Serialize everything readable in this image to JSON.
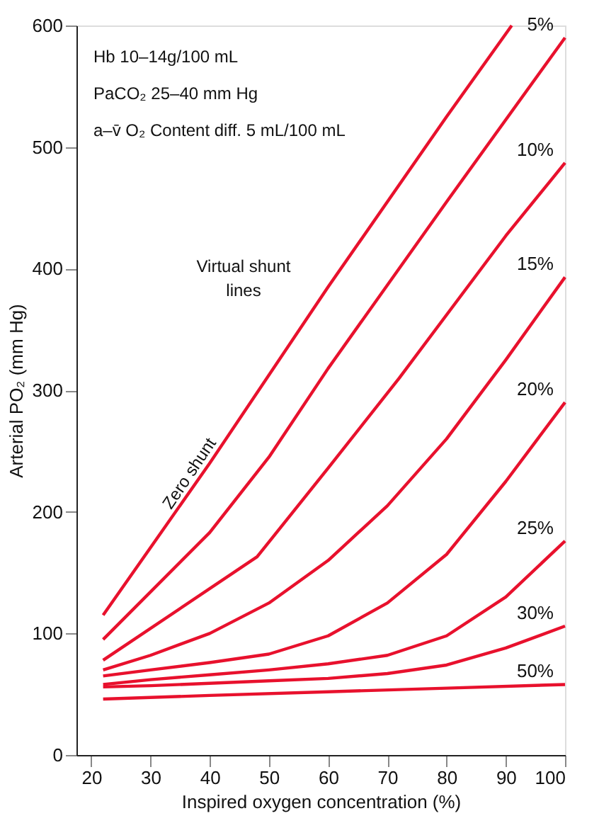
{
  "chart_data": {
    "type": "line",
    "xlabel": "Inspired oxygen concentration (%)",
    "ylabel": "Arterial PO₂ (mm Hg)",
    "xlim": [
      17.5,
      100
    ],
    "xticks": [
      20,
      30,
      40,
      50,
      60,
      70,
      80,
      90,
      100
    ],
    "ylim": [
      0,
      600
    ],
    "yticks": [
      0,
      100,
      200,
      300,
      400,
      500,
      600
    ],
    "grid": false,
    "marker": "none",
    "line_style": "solid",
    "annotations": [
      "Hb 10–14g/100 mL",
      "PaCO₂ 25–40 mm Hg",
      "a–v̄ O₂ Content diff. 5 mL/100 mL",
      "Virtual shunt\nlines"
    ],
    "series": [
      {
        "name": "Zero shunt",
        "color": "#e8112d",
        "x": [
          22,
          40,
          60,
          80,
          91
        ],
        "values": [
          115,
          240,
          385,
          525,
          600
        ]
      },
      {
        "name": "5%",
        "color": "#e8112d",
        "x": [
          22,
          40,
          50,
          60,
          80,
          100
        ],
        "values": [
          95,
          183,
          245,
          318,
          455,
          590
        ]
      },
      {
        "name": "10%",
        "color": "#e8112d",
        "x": [
          22,
          48,
          60,
          72,
          90,
          100
        ],
        "values": [
          78,
          163,
          236,
          310,
          427,
          487
        ]
      },
      {
        "name": "15%",
        "color": "#e8112d",
        "x": [
          22,
          30,
          40,
          50,
          60,
          70,
          80,
          90,
          100
        ],
        "values": [
          70,
          82,
          100,
          125,
          160,
          205,
          260,
          325,
          393
        ]
      },
      {
        "name": "20%",
        "color": "#e8112d",
        "x": [
          22,
          30,
          40,
          50,
          60,
          70,
          80,
          90,
          100
        ],
        "values": [
          65,
          70,
          76,
          83,
          98,
          125,
          165,
          225,
          290
        ]
      },
      {
        "name": "25%",
        "color": "#e8112d",
        "x": [
          22,
          30,
          40,
          50,
          60,
          70,
          80,
          90,
          100
        ],
        "values": [
          58,
          62,
          66,
          70,
          75,
          82,
          98,
          130,
          176
        ]
      },
      {
        "name": "30%",
        "color": "#e8112d",
        "x": [
          22,
          30,
          40,
          50,
          60,
          70,
          80,
          90,
          100
        ],
        "values": [
          56,
          57,
          59,
          61,
          63,
          67,
          74,
          88,
          106
        ]
      },
      {
        "name": "50%",
        "color": "#e8112d",
        "x": [
          22,
          40,
          60,
          80,
          100
        ],
        "values": [
          46,
          49,
          52,
          55,
          58
        ]
      }
    ]
  }
}
